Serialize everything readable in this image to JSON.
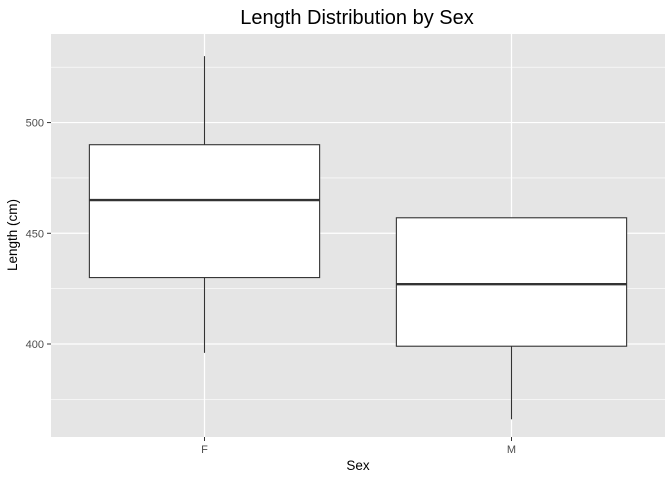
{
  "chart_data": {
    "type": "box",
    "title": "Length Distribution by Sex",
    "xlabel": "Sex",
    "ylabel": "Length (cm)",
    "categories": [
      "F",
      "M"
    ],
    "boxes": [
      {
        "category": "F",
        "whisker_low": 396,
        "q1": 430,
        "median": 465,
        "q3": 490,
        "whisker_high": 530
      },
      {
        "category": "M",
        "whisker_low": 366,
        "q1": 399,
        "median": 427,
        "q3": 457,
        "whisker_high": 457
      }
    ],
    "ylim": [
      358,
      540
    ],
    "y_ticks": [
      400,
      450,
      500
    ],
    "y_tick_labels": [
      "400",
      "450",
      "500"
    ],
    "grid": true,
    "colors": {
      "panel": "#e5e5e5",
      "grid": "#ffffff",
      "box_fill": "#ffffff",
      "box_stroke": "#333333",
      "tick_text": "#4d4d4d"
    }
  }
}
